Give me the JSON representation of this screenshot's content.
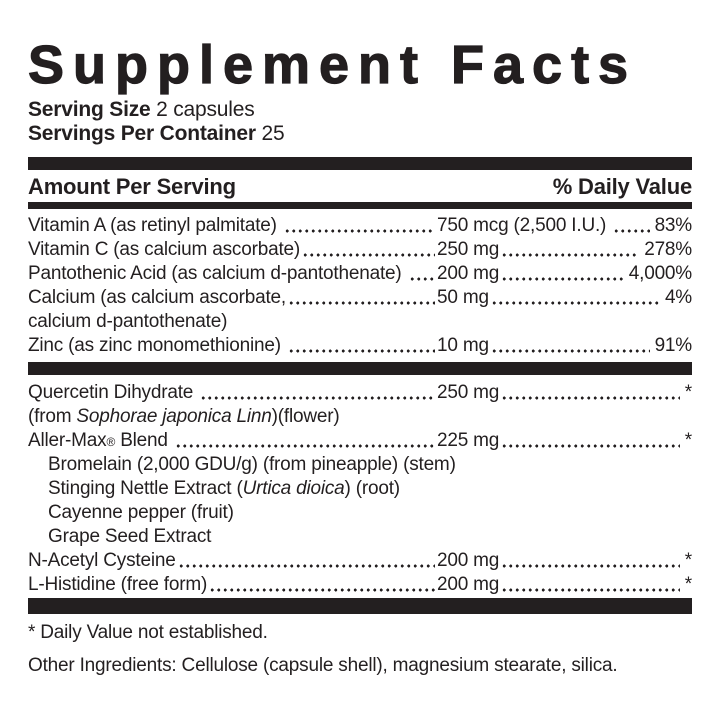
{
  "title": "Supplement Facts",
  "serving": {
    "size_label": "Serving Size",
    "size_value": " 2 capsules",
    "container_label": "Servings Per Container",
    "container_value": " 25"
  },
  "header": {
    "amount_label": "Amount Per Serving",
    "dv_label": "% Daily Value"
  },
  "colors": {
    "ink": "#231f20",
    "background": "#ffffff"
  },
  "table": {
    "sections": [
      {
        "rows": [
          {
            "kind": "dotted",
            "indent": false,
            "name": [
              {
                "text": "Vitamin A (as retinyl palmitate) "
              }
            ],
            "amount": "750 mcg (2,500 I.U.) ",
            "dv": "83%"
          },
          {
            "kind": "dotted",
            "indent": false,
            "name": [
              {
                "text": "Vitamin C (as calcium ascorbate)"
              }
            ],
            "amount": "250 mg",
            "dv": "278%"
          },
          {
            "kind": "dotted",
            "indent": false,
            "name": [
              {
                "text": "Pantothenic Acid (as calcium d-pantothenate) "
              }
            ],
            "amount": "200 mg",
            "dv": "4,000%"
          },
          {
            "kind": "dotted",
            "indent": false,
            "name": [
              {
                "text": "Calcium (as calcium ascorbate,"
              }
            ],
            "amount": "50 mg",
            "dv": "4%"
          },
          {
            "kind": "plain",
            "indent": false,
            "name": [
              {
                "text": "calcium d-pantothenate)"
              }
            ]
          },
          {
            "kind": "dotted",
            "indent": false,
            "name": [
              {
                "text": "Zinc (as zinc monomethionine) "
              }
            ],
            "amount": "10 mg",
            "dv": "91%"
          }
        ]
      },
      {
        "rows": [
          {
            "kind": "dotted",
            "indent": false,
            "name": [
              {
                "text": "Quercetin Dihydrate "
              }
            ],
            "amount": "250 mg",
            "dv": "*"
          },
          {
            "kind": "plain",
            "indent": false,
            "name": [
              {
                "text": "(from "
              },
              {
                "text": "Sophorae japonica Linn",
                "style": "italic"
              },
              {
                "text": ")(flower)"
              }
            ]
          },
          {
            "kind": "dotted",
            "indent": false,
            "name": [
              {
                "text": "Aller-Max"
              },
              {
                "text": "®",
                "style": "sup"
              },
              {
                "text": " Blend "
              }
            ],
            "amount": "225 mg",
            "dv": "*"
          },
          {
            "kind": "plain",
            "indent": true,
            "name": [
              {
                "text": "Bromelain (2,000 GDU/g) (from pineapple) (stem)"
              }
            ]
          },
          {
            "kind": "plain",
            "indent": true,
            "name": [
              {
                "text": "Stinging Nettle Extract ("
              },
              {
                "text": "Urtica dioica",
                "style": "italic"
              },
              {
                "text": ") (root)"
              }
            ]
          },
          {
            "kind": "plain",
            "indent": true,
            "name": [
              {
                "text": "Cayenne pepper (fruit)"
              }
            ]
          },
          {
            "kind": "plain",
            "indent": true,
            "name": [
              {
                "text": "Grape Seed Extract"
              }
            ]
          },
          {
            "kind": "dotted",
            "indent": false,
            "name": [
              {
                "text": "N-Acetyl Cysteine"
              }
            ],
            "amount": "200 mg",
            "dv": "*"
          },
          {
            "kind": "dotted",
            "indent": false,
            "name": [
              {
                "text": "L-Histidine (free form)"
              }
            ],
            "amount": "200 mg",
            "dv": "*"
          }
        ]
      }
    ]
  },
  "footnote": "* Daily Value not established.",
  "other_ingredients": "Other Ingredients: Cellulose (capsule shell), magnesium stearate, silica."
}
